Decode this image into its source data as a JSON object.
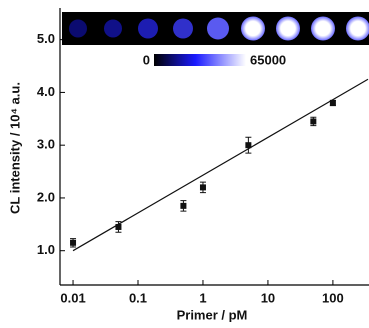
{
  "chart_data": {
    "type": "scatter",
    "x_label": "Primer / pM",
    "y_label": "CL intensity / 10⁴ a.u.",
    "xscale": "log",
    "xlim": [
      0.0063,
      347
    ],
    "ylim": [
      0.35,
      5.6
    ],
    "xticks": [
      0.01,
      0.1,
      1,
      10,
      100
    ],
    "yticks": [
      {
        "value": 1,
        "label": "1.0"
      },
      {
        "value": 2,
        "label": "2.0"
      },
      {
        "value": 3,
        "label": "3.0"
      },
      {
        "value": 4,
        "label": "4.0"
      },
      {
        "value": 5,
        "label": "5.0"
      }
    ],
    "series": [
      {
        "style": "markers",
        "color": "#111111",
        "x": [
          0.01,
          0.05,
          0.5,
          1,
          5,
          50,
          100
        ],
        "values": [
          1.15,
          1.45,
          1.85,
          2.2,
          3.0,
          3.45,
          3.8
        ],
        "errors": [
          0.08,
          0.1,
          0.1,
          0.1,
          0.15,
          0.08,
          0.05
        ]
      },
      {
        "style": "line",
        "color": "#111111",
        "x": [
          0.01,
          347
        ],
        "values": [
          1.0,
          4.25
        ]
      }
    ],
    "colorbar": {
      "min": 0,
      "max": 65000
    }
  }
}
